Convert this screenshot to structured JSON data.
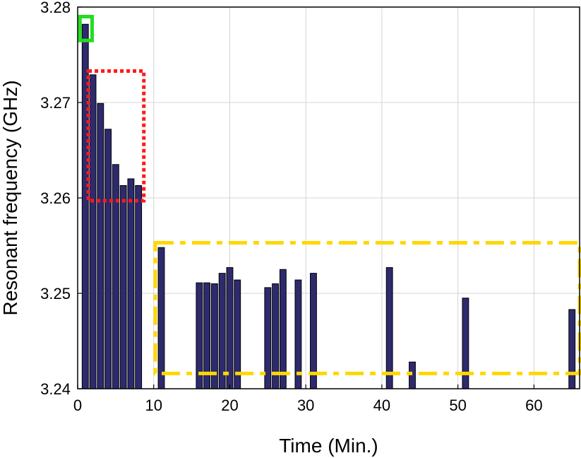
{
  "chart_data": {
    "type": "bar",
    "title": "",
    "xlabel": "Time (Min.)",
    "ylabel": "Resonant frequency (GHz)",
    "xlim": [
      0,
      66
    ],
    "ylim": [
      3.24,
      3.28
    ],
    "xticks": [
      "0",
      "10",
      "20",
      "30",
      "40",
      "50",
      "60"
    ],
    "yticks": [
      "3.24",
      "3.25",
      "3.26",
      "3.27",
      "3.28"
    ],
    "grid": true,
    "bar_color": "#2e2a6e",
    "x": [
      1,
      2,
      3,
      4,
      5,
      6,
      7,
      8,
      11,
      16,
      17,
      18,
      19,
      20,
      21,
      25,
      26,
      27,
      29,
      31,
      41,
      44,
      51,
      65
    ],
    "values": [
      3.2782,
      3.2729,
      3.2699,
      3.2672,
      3.2635,
      3.2613,
      3.262,
      3.2613,
      3.2548,
      3.2511,
      3.2511,
      3.251,
      3.2521,
      3.2527,
      3.2514,
      3.2506,
      3.251,
      3.2525,
      3.2514,
      3.2521,
      3.2527,
      3.2428,
      3.2495,
      3.2483
    ],
    "annotations": [
      {
        "shape": "rectangle",
        "style": "solid",
        "color": "#22dd22",
        "x_range": [
          0.3,
          1.9
        ],
        "y_range": [
          3.2765,
          3.279
        ]
      },
      {
        "shape": "rectangle",
        "style": "dotted",
        "color": "#ff1a1a",
        "x_range": [
          1.4,
          8.7
        ],
        "y_range": [
          3.2597,
          3.2733
        ]
      },
      {
        "shape": "rectangle",
        "style": "dash-dot",
        "color": "#ffd700",
        "x_range": [
          10.2,
          66.0
        ],
        "y_range": [
          3.2416,
          3.2553
        ]
      }
    ]
  }
}
